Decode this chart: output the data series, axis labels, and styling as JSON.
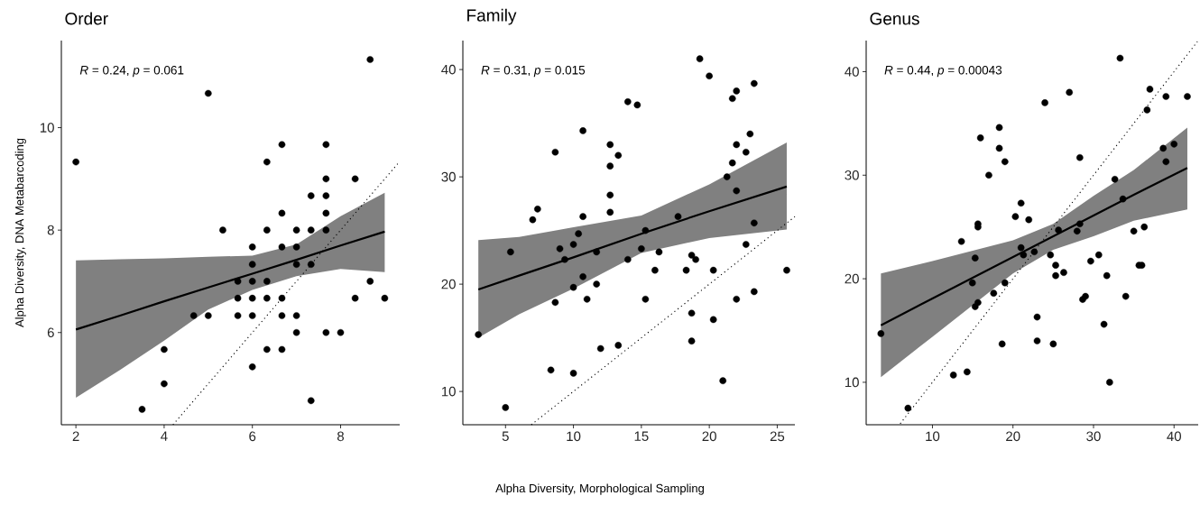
{
  "chart_data": [
    {
      "type": "scatter",
      "marker": "circle",
      "title": "Order",
      "ylabel": "Alpha Diversity, DNA Metabarcoding",
      "annotations": [
        "*R* = 0.24, *p* = 0.061"
      ],
      "xlim": [
        1.67,
        9.34
      ],
      "ylim": [
        4.2,
        11.7
      ],
      "xticks": [
        2,
        4,
        6,
        8
      ],
      "yticks": [
        6,
        8,
        10
      ],
      "series": [
        {
          "type": "scatter",
          "color": "#000000",
          "x": [
            2,
            3.5,
            4,
            4,
            4.67,
            5,
            5,
            5.33,
            5.67,
            5.67,
            5.67,
            6,
            6,
            6,
            6,
            6,
            6,
            6.33,
            6.33,
            6.33,
            6.33,
            6.33,
            6.67,
            6.67,
            6.67,
            6.67,
            6.67,
            6.67,
            7,
            7,
            7,
            7,
            7,
            7.33,
            7.33,
            7.33,
            7.33,
            7.67,
            7.67,
            7.67,
            7.67,
            7.67,
            7.67,
            8,
            8.33,
            8.33,
            8.67,
            8.67,
            9
          ],
          "values": [
            9.33,
            4.5,
            5.67,
            5,
            6.33,
            6.33,
            10.67,
            8,
            7,
            6.67,
            6.33,
            7.67,
            7.33,
            7,
            6.67,
            6.33,
            5.33,
            9.33,
            8,
            7,
            6.67,
            5.67,
            9.67,
            8.33,
            7.67,
            6.67,
            6.33,
            5.67,
            8,
            7.67,
            7.33,
            6.33,
            6,
            8.67,
            8,
            7.33,
            4.67,
            9.67,
            9,
            8.67,
            8.33,
            8,
            6,
            6,
            9,
            6.67,
            11.33,
            7,
            6.67
          ]
        },
        {
          "type": "line",
          "color": "#000000",
          "marker": "none",
          "line_style": "solid",
          "x": [
            2,
            3,
            4,
            5,
            6,
            7,
            8,
            9
          ],
          "values": [
            6.06,
            6.33,
            6.61,
            6.88,
            7.15,
            7.42,
            7.7,
            7.97
          ],
          "lower": [
            4.73,
            5.27,
            5.84,
            6.45,
            6.83,
            7.1,
            7.24,
            7.18
          ],
          "upper": [
            7.41,
            7.43,
            7.45,
            7.48,
            7.5,
            7.72,
            8.27,
            8.73
          ]
        },
        {
          "type": "line",
          "color": "#000000",
          "marker": "none",
          "line_style": "dotted",
          "x": [
            4.2,
            9.3
          ],
          "values": [
            4.2,
            9.3
          ]
        }
      ]
    },
    {
      "type": "scatter",
      "marker": "circle",
      "title": "Family",
      "xlabel": "Alpha Diversity, Morphological Sampling",
      "annotations": [
        "*R* = 0.31, *p* = 0.015"
      ],
      "xlim": [
        1.86,
        26.3
      ],
      "ylim": [
        6.9,
        42.7
      ],
      "xticks": [
        5,
        10,
        15,
        20,
        25
      ],
      "yticks": [
        10,
        20,
        30,
        40
      ],
      "series": [
        {
          "type": "scatter",
          "color": "#000000",
          "x": [
            3.0,
            5.0,
            5.37,
            7.0,
            7.36,
            8.34,
            8.66,
            8.66,
            9.0,
            9.36,
            10,
            10,
            10,
            10.37,
            10.7,
            10.7,
            10.7,
            11.0,
            11.7,
            11.7,
            12.0,
            12.7,
            12.7,
            12.7,
            12.7,
            13.3,
            13.3,
            14.0,
            14.0,
            14.7,
            15.0,
            15.3,
            15.3,
            16.0,
            16.3,
            17.7,
            18.3,
            18.7,
            18.7,
            18.7,
            19.0,
            19.3,
            20.0,
            20.3,
            20.3,
            21.0,
            21.3,
            21.7,
            21.7,
            22.0,
            22.0,
            22.0,
            22.0,
            22.7,
            22.7,
            23.0,
            23.3,
            23.3,
            23.3,
            25.7
          ],
          "values": [
            15.3,
            8.5,
            23.0,
            26.0,
            27.0,
            12.0,
            32.3,
            18.3,
            23.3,
            22.3,
            11.7,
            19.7,
            23.7,
            24.7,
            34.3,
            26.3,
            20.7,
            18.6,
            20,
            23.0,
            14.0,
            33.0,
            31.0,
            28.3,
            26.7,
            32.0,
            14.3,
            37.0,
            22.3,
            36.7,
            23.3,
            25.0,
            18.6,
            21.3,
            23.0,
            26.3,
            21.3,
            22.7,
            17.3,
            14.7,
            22.3,
            41.0,
            39.4,
            21.3,
            16.7,
            11.0,
            30.0,
            37.3,
            31.3,
            38.0,
            33.0,
            28.7,
            18.6,
            32.3,
            23.7,
            34.0,
            38.7,
            25.7,
            19.3,
            21.3
          ]
        },
        {
          "type": "line",
          "color": "#000000",
          "marker": "none",
          "line_style": "solid",
          "x": [
            3,
            6,
            10,
            15,
            20,
            25.7
          ],
          "values": [
            19.5,
            20.8,
            22.5,
            24.7,
            26.8,
            29.1
          ],
          "lower": [
            15.0,
            17.2,
            19.6,
            22.9,
            24.3,
            25.1
          ],
          "upper": [
            24.1,
            24.4,
            25.3,
            26.4,
            29.3,
            33.2
          ]
        },
        {
          "type": "line",
          "color": "#000000",
          "marker": "none",
          "line_style": "dotted",
          "x": [
            6.9,
            26.3
          ],
          "values": [
            6.9,
            26.3
          ]
        }
      ]
    },
    {
      "type": "scatter",
      "marker": "circle",
      "title": "Genus",
      "annotations": [
        "*R* = 0.44, *p* = 0.00043"
      ],
      "xlim": [
        1.77,
        43.0
      ],
      "ylim": [
        5.9,
        43.0
      ],
      "xticks": [
        10,
        20,
        30,
        40
      ],
      "yticks": [
        10,
        20,
        30,
        40
      ],
      "series": [
        {
          "type": "scatter",
          "color": "#000000",
          "x": [
            3.6,
            6.96,
            12.6,
            14.3,
            13.6,
            14.96,
            15.3,
            15.3,
            15.65,
            15.65,
            15.65,
            15.96,
            17.0,
            17.6,
            18.3,
            18.3,
            18.65,
            19.0,
            19.0,
            20.3,
            21.0,
            21.0,
            21.3,
            21.96,
            22.65,
            23.0,
            23.0,
            23.96,
            24.65,
            25.0,
            25.3,
            25.3,
            25.65,
            26.3,
            27.0,
            27.96,
            28.3,
            28.3,
            28.65,
            29.0,
            29.65,
            30.65,
            31.3,
            31.65,
            32.0,
            32.65,
            33.3,
            33.65,
            34.0,
            35.0,
            35.65,
            36.0,
            36.3,
            36.65,
            37.0,
            38.65,
            39.0,
            39.0,
            40.0,
            41.65
          ],
          "values": [
            14.7,
            7.5,
            10.7,
            11.0,
            23.6,
            19.6,
            22.0,
            17.3,
            17.7,
            25.3,
            25.0,
            33.6,
            30.0,
            18.6,
            34.6,
            32.6,
            13.7,
            31.3,
            19.6,
            26.0,
            27.3,
            23.0,
            22.3,
            25.7,
            22.6,
            16.3,
            14.0,
            37.0,
            22.3,
            13.7,
            21.3,
            20.3,
            24.7,
            20.6,
            38.0,
            24.6,
            25.3,
            31.7,
            18.0,
            18.3,
            21.7,
            22.3,
            15.6,
            20.3,
            10.0,
            29.6,
            41.3,
            27.7,
            18.3,
            24.6,
            21.3,
            21.3,
            25.0,
            36.3,
            38.3,
            32.6,
            37.6,
            31.3,
            33.0,
            37.6
          ]
        },
        {
          "type": "line",
          "color": "#000000",
          "marker": "none",
          "line_style": "solid",
          "x": [
            3.6,
            10,
            20,
            25,
            30,
            35,
            41.65
          ],
          "values": [
            15.5,
            18.1,
            22.1,
            24.1,
            26.1,
            28.1,
            30.7
          ],
          "lower": [
            10.5,
            14.4,
            20.5,
            22.8,
            24.1,
            25.6,
            26.7
          ],
          "upper": [
            20.5,
            21.7,
            23.7,
            25.3,
            28.0,
            30.5,
            34.6
          ]
        },
        {
          "type": "line",
          "color": "#000000",
          "marker": "none",
          "line_style": "dotted",
          "x": [
            6,
            42.9
          ],
          "values": [
            6,
            42.9
          ]
        }
      ]
    }
  ]
}
